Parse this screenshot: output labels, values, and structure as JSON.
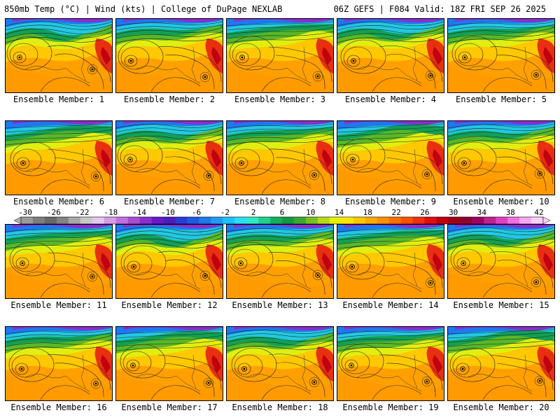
{
  "header": {
    "left": "850mb Temp (°C) | Wind (kts) | College of DuPage NEXLAB",
    "right": "06Z GEFS | F084 Valid: 18Z FRI SEP 26 2025"
  },
  "panels": [
    {
      "label": "Ensemble Member: 1"
    },
    {
      "label": "Ensemble Member: 2"
    },
    {
      "label": "Ensemble Member: 3"
    },
    {
      "label": "Ensemble Member: 4"
    },
    {
      "label": "Ensemble Member: 5"
    },
    {
      "label": "Ensemble Member: 6"
    },
    {
      "label": "Ensemble Member: 7"
    },
    {
      "label": "Ensemble Member: 8"
    },
    {
      "label": "Ensemble Member: 9"
    },
    {
      "label": "Ensemble Member: 10"
    },
    {
      "label": "Ensemble Member: 11"
    },
    {
      "label": "Ensemble Member: 12"
    },
    {
      "label": "Ensemble Member: 13"
    },
    {
      "label": "Ensemble Member: 14"
    },
    {
      "label": "Ensemble Member: 15"
    },
    {
      "label": "Ensemble Member: 16"
    },
    {
      "label": "Ensemble Member: 17"
    },
    {
      "label": "Ensemble Member: 18"
    },
    {
      "label": "Ensemble Member: 19"
    },
    {
      "label": "Ensemble Member: 20"
    }
  ],
  "colorbar": {
    "ticks": [
      "-30",
      "-26",
      "-22",
      "-18",
      "-14",
      "-10",
      "-6",
      "-2",
      "2",
      "6",
      "10",
      "14",
      "18",
      "22",
      "26",
      "30",
      "34",
      "38",
      "42"
    ],
    "colors": [
      "#9a9a9a",
      "#7d7d7d",
      "#686868",
      "#848484",
      "#a8a8a8",
      "#c8c8c8",
      "#e3c8f0",
      "#d79be8",
      "#c36fe0",
      "#a84fd0",
      "#8a2ed0",
      "#6a18c8",
      "#4a1dc0",
      "#2a3ad8",
      "#1e5ae0",
      "#1e78f0",
      "#1e9cf5",
      "#20c0ff",
      "#28e0f0",
      "#30e8c8",
      "#20d090",
      "#10b060",
      "#139a40",
      "#3aa830",
      "#78c020",
      "#b8d818",
      "#e8f000",
      "#ffe600",
      "#ffc800",
      "#ffaa00",
      "#ff9000",
      "#ff7000",
      "#ff5000",
      "#f03010",
      "#e01010",
      "#c00010",
      "#a00018",
      "#900030",
      "#a00060",
      "#c02090",
      "#e040c0",
      "#f070e0",
      "#f8a8f0",
      "#fcd0f8"
    ]
  }
}
